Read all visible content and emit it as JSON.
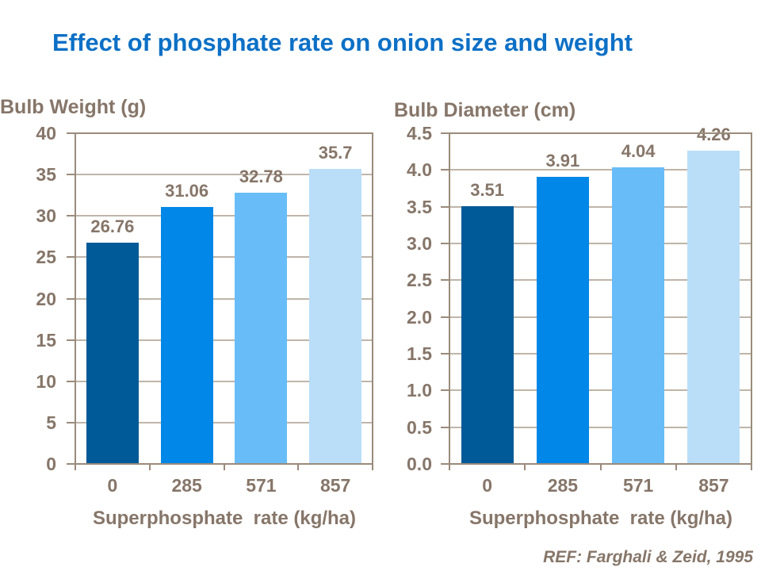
{
  "slide": {
    "title": "Effect of phosphate rate on onion size and weight",
    "reference": "REF: Farghali & Zeid, 1995"
  },
  "colors": {
    "title_blue": "#0C70C6",
    "label_brown": "#867669",
    "axis_line": "#9A8B7B",
    "gridline": "#BEB5A9",
    "bar_colors": [
      "#005A97",
      "#0087E7",
      "#68BDF8",
      "#BADEF8"
    ]
  },
  "chart_data": [
    {
      "type": "bar",
      "title": "Bulb Weight (g)",
      "xlabel": "Superphosphate  rate (kg/ha)",
      "ylabel": "Bulb Weight (g)",
      "categories": [
        "0",
        "285",
        "571",
        "857"
      ],
      "values": [
        26.76,
        31.06,
        32.78,
        35.7
      ],
      "value_labels": [
        "26.76",
        "31.06",
        "32.78",
        "35.7"
      ],
      "ylim": [
        0,
        40
      ],
      "yticks": [
        "40",
        "35",
        "30",
        "25",
        "20",
        "15",
        "10",
        "5",
        "0"
      ],
      "grid": true,
      "legend": false
    },
    {
      "type": "bar",
      "title": "Bulb Diameter (cm)",
      "xlabel": "Superphosphate  rate (kg/ha)",
      "ylabel": "Bulb Diameter (cm)",
      "categories": [
        "0",
        "285",
        "571",
        "857"
      ],
      "values": [
        3.51,
        3.91,
        4.04,
        4.26
      ],
      "value_labels": [
        "3.51",
        "3.91",
        "4.04",
        "4.26"
      ],
      "ylim": [
        0,
        4.5
      ],
      "yticks": [
        "4.5",
        "4.0",
        "3.5",
        "3.0",
        "2.5",
        "2.0",
        "1.5",
        "1.0",
        "0.5",
        "0.0"
      ],
      "grid": true,
      "legend": false
    }
  ]
}
